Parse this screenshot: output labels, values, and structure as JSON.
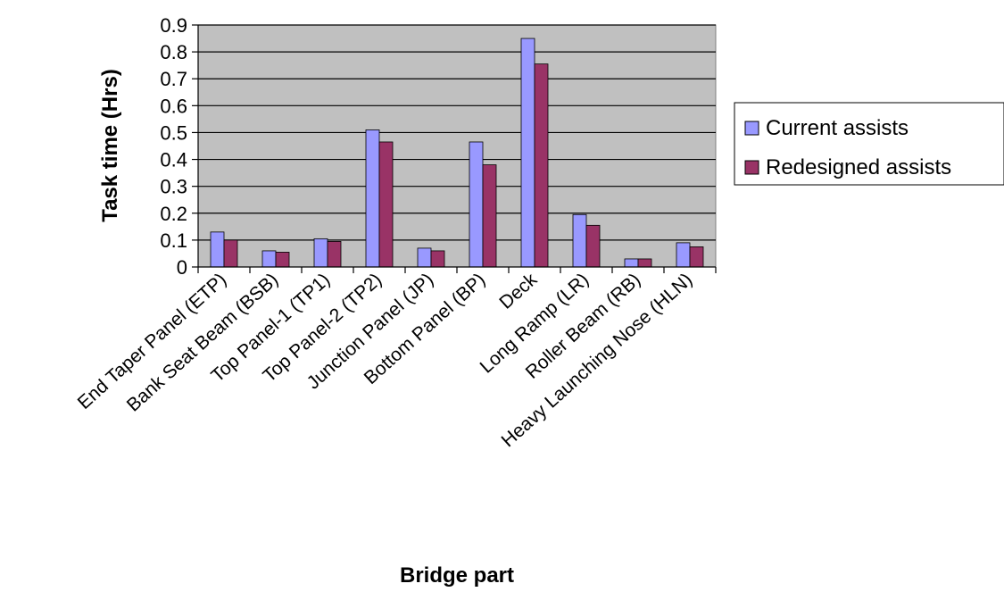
{
  "chart_data": {
    "type": "bar",
    "title": "",
    "xlabel": "Bridge part",
    "ylabel": "Task time (Hrs)",
    "ylim": [
      0,
      0.9
    ],
    "y_ticks": [
      "0",
      "0.1",
      "0.2",
      "0.3",
      "0.4",
      "0.5",
      "0.6",
      "0.7",
      "0.8",
      "0.9"
    ],
    "grid": "horizontal",
    "legend_position": "right",
    "categories": [
      "End Taper Panel (ETP)",
      "Bank Seat Beam (BSB)",
      "Top Panel-1 (TP1)",
      "Top Panel-2 (TP2)",
      "Junction Panel (JP)",
      "Bottom Panel (BP)",
      "Deck",
      "Long Ramp (LR)",
      "Roller Beam (RB)",
      "Heavy Launching Nose (HLN)"
    ],
    "series": [
      {
        "name": "Current assists",
        "color": "#9999ff",
        "values": [
          0.13,
          0.06,
          0.105,
          0.51,
          0.07,
          0.465,
          0.85,
          0.195,
          0.03,
          0.09
        ]
      },
      {
        "name": "Redesigned assists",
        "color": "#993366",
        "values": [
          0.1,
          0.055,
          0.095,
          0.465,
          0.06,
          0.38,
          0.755,
          0.155,
          0.03,
          0.075
        ]
      }
    ],
    "plot_background": "#c0c0c0"
  }
}
